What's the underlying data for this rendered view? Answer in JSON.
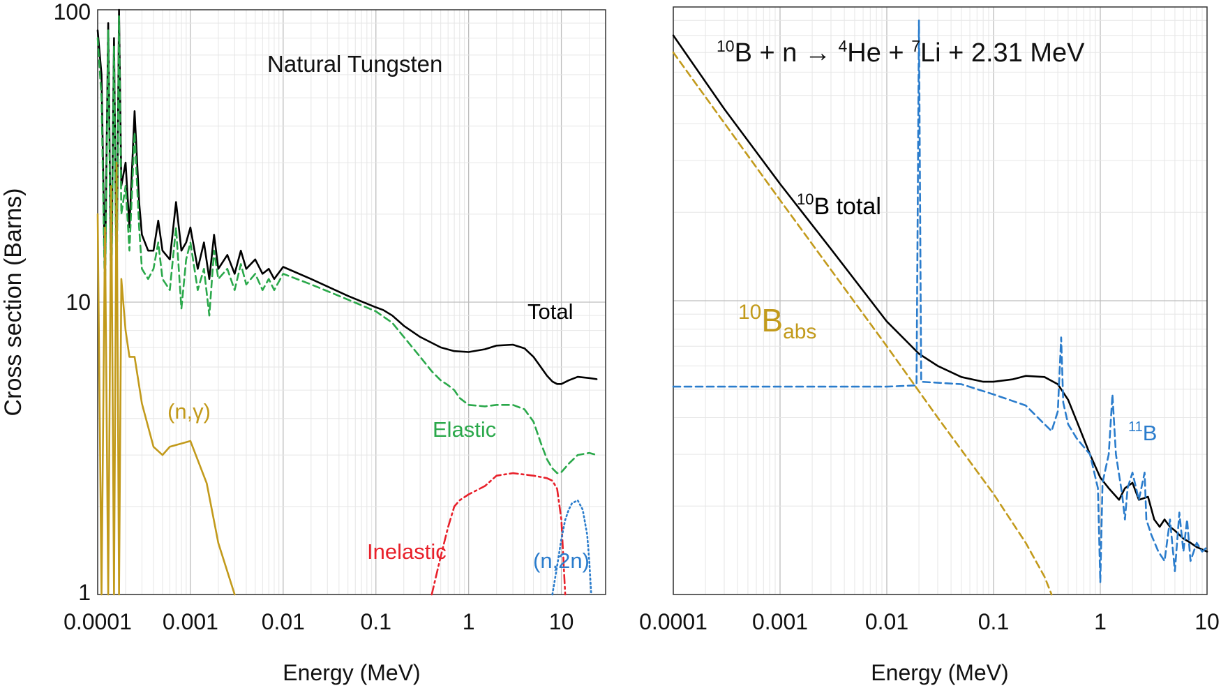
{
  "chart_data": [
    {
      "type": "line",
      "title": "Natural Tungsten",
      "xlabel": "Energy (MeV)",
      "ylabel": "Cross section (Barns)",
      "xscale": "log",
      "yscale": "log",
      "xlim": [
        0.0001,
        30
      ],
      "ylim": [
        1,
        100
      ],
      "x_ticks": [
        "0.0001",
        "0.001",
        "0.01",
        "0.1",
        "1",
        "10"
      ],
      "y_ticks": [
        "1",
        "10",
        "100"
      ],
      "grid": true,
      "annotations": [
        {
          "text": "Total",
          "color": "#000000"
        },
        {
          "text": "(n,γ)",
          "color": "#c29a1b"
        },
        {
          "text": "Elastic",
          "color": "#2aa84a"
        },
        {
          "text": "Inelastic",
          "color": "#e8202a"
        },
        {
          "text": "(n,2n)",
          "color": "#2a7ccc"
        }
      ],
      "series": [
        {
          "name": "Total",
          "color": "#000000",
          "dash": "solid",
          "points": [
            [
              0.0001,
              85
            ],
            [
              0.00011,
              60
            ],
            [
              0.00012,
              12
            ],
            [
              0.00013,
              90
            ],
            [
              0.00014,
              11
            ],
            [
              0.00015,
              80
            ],
            [
              0.00016,
              12
            ],
            [
              0.00017,
              100
            ],
            [
              0.00018,
              25
            ],
            [
              0.0002,
              30
            ],
            [
              0.00022,
              18
            ],
            [
              0.00025,
              45
            ],
            [
              0.00028,
              22
            ],
            [
              0.0003,
              17
            ],
            [
              0.00035,
              15
            ],
            [
              0.0004,
              15
            ],
            [
              0.00045,
              19
            ],
            [
              0.0005,
              15
            ],
            [
              0.0006,
              14
            ],
            [
              0.0007,
              22
            ],
            [
              0.0008,
              15
            ],
            [
              0.0009,
              16
            ],
            [
              0.001,
              18
            ],
            [
              0.0012,
              13
            ],
            [
              0.0014,
              16
            ],
            [
              0.0016,
              12
            ],
            [
              0.0018,
              17
            ],
            [
              0.002,
              13
            ],
            [
              0.0025,
              14.5
            ],
            [
              0.003,
              12.5
            ],
            [
              0.0035,
              15
            ],
            [
              0.004,
              13
            ],
            [
              0.005,
              14
            ],
            [
              0.006,
              12.5
            ],
            [
              0.007,
              13
            ],
            [
              0.008,
              12
            ],
            [
              0.01,
              13.2
            ],
            [
              0.02,
              12
            ],
            [
              0.05,
              10.5
            ],
            [
              0.1,
              9.6
            ],
            [
              0.12,
              9.4
            ],
            [
              0.15,
              9.0
            ],
            [
              0.2,
              8.3
            ],
            [
              0.3,
              7.6
            ],
            [
              0.5,
              7.0
            ],
            [
              0.7,
              6.8
            ],
            [
              1,
              6.75
            ],
            [
              1.5,
              6.9
            ],
            [
              2,
              7.1
            ],
            [
              3,
              7.15
            ],
            [
              4,
              6.95
            ],
            [
              5,
              6.5
            ],
            [
              6,
              6.0
            ],
            [
              7,
              5.6
            ],
            [
              8,
              5.35
            ],
            [
              9,
              5.25
            ],
            [
              10,
              5.25
            ],
            [
              12,
              5.4
            ],
            [
              15,
              5.55
            ],
            [
              20,
              5.5
            ],
            [
              24,
              5.45
            ]
          ]
        },
        {
          "name": "Elastic",
          "color": "#2aa84a",
          "dash": "dashed",
          "points": [
            [
              0.0001,
              80
            ],
            [
              0.00011,
              50
            ],
            [
              0.00012,
              10
            ],
            [
              0.00013,
              85
            ],
            [
              0.00014,
              9
            ],
            [
              0.00015,
              75
            ],
            [
              0.00016,
              10
            ],
            [
              0.00017,
              95
            ],
            [
              0.00018,
              20
            ],
            [
              0.0002,
              25
            ],
            [
              0.00022,
              15
            ],
            [
              0.00025,
              38
            ],
            [
              0.00028,
              18
            ],
            [
              0.0003,
              13
            ],
            [
              0.00035,
              12
            ],
            [
              0.0004,
              13
            ],
            [
              0.00045,
              16
            ],
            [
              0.0005,
              12
            ],
            [
              0.0006,
              11
            ],
            [
              0.0007,
              18
            ],
            [
              0.0008,
              9.5
            ],
            [
              0.0009,
              14
            ],
            [
              0.001,
              16
            ],
            [
              0.0012,
              11
            ],
            [
              0.0014,
              13
            ],
            [
              0.0016,
              9
            ],
            [
              0.0018,
              15
            ],
            [
              0.002,
              12
            ],
            [
              0.0025,
              13
            ],
            [
              0.003,
              11
            ],
            [
              0.0035,
              13.5
            ],
            [
              0.004,
              11.5
            ],
            [
              0.005,
              12.5
            ],
            [
              0.006,
              11
            ],
            [
              0.007,
              12
            ],
            [
              0.008,
              11
            ],
            [
              0.01,
              12.5
            ],
            [
              0.02,
              11.5
            ],
            [
              0.05,
              10.2
            ],
            [
              0.1,
              9.3
            ],
            [
              0.15,
              8.5
            ],
            [
              0.2,
              7.6
            ],
            [
              0.3,
              6.5
            ],
            [
              0.4,
              5.8
            ],
            [
              0.5,
              5.4
            ],
            [
              0.6,
              5.2
            ],
            [
              0.7,
              5.0
            ],
            [
              0.8,
              4.7
            ],
            [
              1,
              4.45
            ],
            [
              1.5,
              4.4
            ],
            [
              2,
              4.45
            ],
            [
              3,
              4.45
            ],
            [
              4,
              4.3
            ],
            [
              5,
              3.9
            ],
            [
              6,
              3.3
            ],
            [
              7,
              2.9
            ],
            [
              8,
              2.7
            ],
            [
              9,
              2.6
            ],
            [
              10,
              2.62
            ],
            [
              12,
              2.8
            ],
            [
              15,
              3.0
            ],
            [
              20,
              3.05
            ],
            [
              24,
              3.0
            ]
          ]
        },
        {
          "name": "(n,γ)",
          "color": "#c29a1b",
          "dash": "solid",
          "points": [
            [
              0.0001,
              20
            ],
            [
              0.00011,
              1
            ],
            [
              0.00012,
              18
            ],
            [
              0.00013,
              1
            ],
            [
              0.00014,
              25
            ],
            [
              0.00015,
              1
            ],
            [
              0.00016,
              30
            ],
            [
              0.00017,
              1
            ],
            [
              0.00018,
              12
            ],
            [
              0.0002,
              8
            ],
            [
              0.00022,
              6.5
            ],
            [
              0.00025,
              6.5
            ],
            [
              0.0003,
              4.5
            ],
            [
              0.0004,
              3.2
            ],
            [
              0.0005,
              3.0
            ],
            [
              0.0006,
              3.2
            ],
            [
              0.001,
              3.35
            ],
            [
              0.0015,
              2.4
            ],
            [
              0.002,
              1.5
            ],
            [
              0.003,
              1.0
            ]
          ]
        },
        {
          "name": "Inelastic",
          "color": "#e8202a",
          "dash": "dash-dot",
          "points": [
            [
              0.4,
              1.0
            ],
            [
              0.5,
              1.35
            ],
            [
              0.6,
              1.7
            ],
            [
              0.7,
              2.0
            ],
            [
              0.8,
              2.1
            ],
            [
              1,
              2.2
            ],
            [
              1.5,
              2.35
            ],
            [
              2,
              2.55
            ],
            [
              3,
              2.6
            ],
            [
              5,
              2.55
            ],
            [
              7,
              2.5
            ],
            [
              8,
              2.45
            ],
            [
              9,
              2.3
            ],
            [
              10,
              1.8
            ],
            [
              11,
              1.0
            ]
          ]
        },
        {
          "name": "(n,2n)",
          "color": "#2a7ccc",
          "dash": "dotted",
          "points": [
            [
              8,
              1.0
            ],
            [
              9,
              1.25
            ],
            [
              10,
              1.55
            ],
            [
              11,
              1.8
            ],
            [
              12,
              1.95
            ],
            [
              13,
              2.05
            ],
            [
              15,
              2.1
            ],
            [
              17,
              1.95
            ],
            [
              19,
              1.6
            ],
            [
              20,
              1.3
            ],
            [
              21,
              1.0
            ]
          ]
        }
      ]
    },
    {
      "type": "line",
      "title": "10B + n → 4He + 7Li + 2.31 MeV",
      "xlabel": "Energy (MeV)",
      "ylabel": "",
      "xscale": "log",
      "yscale": "log",
      "xlim": [
        0.0001,
        10
      ],
      "ylim": [
        1,
        100
      ],
      "x_ticks": [
        "0.0001",
        "0.001",
        "0.01",
        "0.1",
        "1",
        "10"
      ],
      "grid": true,
      "annotations": [
        {
          "text": "10B total",
          "color": "#000000"
        },
        {
          "text": "10Babs",
          "color": "#c29a1b"
        },
        {
          "text": "11B",
          "color": "#2a7ccc"
        }
      ],
      "series": [
        {
          "name": "10B total",
          "color": "#000000",
          "dash": "solid",
          "points": [
            [
              0.0001,
              80
            ],
            [
              0.0003,
              45
            ],
            [
              0.001,
              25
            ],
            [
              0.003,
              15
            ],
            [
              0.01,
              8.5
            ],
            [
              0.02,
              6.6
            ],
            [
              0.03,
              6.0
            ],
            [
              0.05,
              5.5
            ],
            [
              0.08,
              5.3
            ],
            [
              0.1,
              5.3
            ],
            [
              0.15,
              5.4
            ],
            [
              0.2,
              5.55
            ],
            [
              0.3,
              5.5
            ],
            [
              0.4,
              5.2
            ],
            [
              0.5,
              4.6
            ],
            [
              0.6,
              3.9
            ],
            [
              0.8,
              3.0
            ],
            [
              1,
              2.5
            ],
            [
              1.2,
              2.3
            ],
            [
              1.5,
              2.1
            ],
            [
              1.7,
              2.3
            ],
            [
              2,
              2.4
            ],
            [
              2.3,
              2.1
            ],
            [
              2.8,
              2.15
            ],
            [
              3.2,
              1.8
            ],
            [
              3.6,
              1.7
            ],
            [
              4,
              1.8
            ],
            [
              4.5,
              1.7
            ],
            [
              5,
              1.65
            ],
            [
              6,
              1.55
            ],
            [
              7,
              1.5
            ],
            [
              8,
              1.45
            ],
            [
              10,
              1.4
            ]
          ]
        },
        {
          "name": "10Babs",
          "color": "#c29a1b",
          "dash": "dashed",
          "points": [
            [
              0.0001,
              70
            ],
            [
              0.001,
              22
            ],
            [
              0.01,
              7
            ],
            [
              0.03,
              4
            ],
            [
              0.1,
              2.2
            ],
            [
              0.2,
              1.5
            ],
            [
              0.3,
              1.15
            ],
            [
              0.35,
              1.0
            ]
          ]
        },
        {
          "name": "11B",
          "color": "#2a7ccc",
          "dash": "dashed",
          "points": [
            [
              0.0001,
              5.1
            ],
            [
              0.01,
              5.1
            ],
            [
              0.019,
              5.15
            ],
            [
              0.02,
              90
            ],
            [
              0.021,
              5.3
            ],
            [
              0.05,
              5.2
            ],
            [
              0.1,
              4.8
            ],
            [
              0.2,
              4.4
            ],
            [
              0.3,
              3.8
            ],
            [
              0.35,
              3.6
            ],
            [
              0.4,
              4.2
            ],
            [
              0.43,
              7.5
            ],
            [
              0.45,
              4.5
            ],
            [
              0.5,
              3.8
            ],
            [
              0.6,
              3.4
            ],
            [
              0.8,
              3.0
            ],
            [
              0.95,
              2.3
            ],
            [
              1.0,
              1.1
            ],
            [
              1.05,
              2.4
            ],
            [
              1.2,
              3.0
            ],
            [
              1.3,
              4.8
            ],
            [
              1.4,
              3.0
            ],
            [
              1.6,
              2.2
            ],
            [
              1.7,
              1.8
            ],
            [
              1.8,
              2.3
            ],
            [
              2,
              2.6
            ],
            [
              2.3,
              2.1
            ],
            [
              2.6,
              2.6
            ],
            [
              2.7,
              1.8
            ],
            [
              3,
              1.6
            ],
            [
              3.5,
              1.4
            ],
            [
              4,
              1.3
            ],
            [
              4.5,
              1.8
            ],
            [
              5,
              1.2
            ],
            [
              5.5,
              1.9
            ],
            [
              6,
              1.4
            ],
            [
              6.5,
              1.8
            ],
            [
              7,
              1.3
            ],
            [
              8,
              1.5
            ],
            [
              9,
              1.4
            ],
            [
              10,
              1.45
            ]
          ]
        }
      ]
    }
  ]
}
